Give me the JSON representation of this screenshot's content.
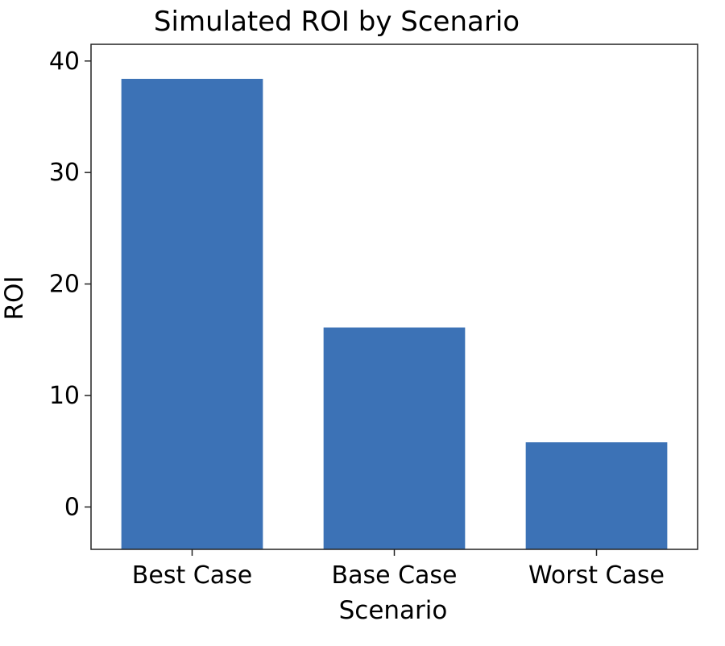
{
  "chart_data": {
    "type": "bar",
    "title": "Simulated ROI by Scenario",
    "xlabel": "Scenario",
    "ylabel": "ROI",
    "categories": [
      "Best Case",
      "Base Case",
      "Worst Case"
    ],
    "values": [
      38.4,
      16.1,
      5.8
    ],
    "ylim": [
      -3.8,
      41.5
    ],
    "yticks": [
      0,
      10,
      20,
      30,
      40
    ],
    "grid": false,
    "legend": false,
    "bar_color": "#3c72b6"
  }
}
